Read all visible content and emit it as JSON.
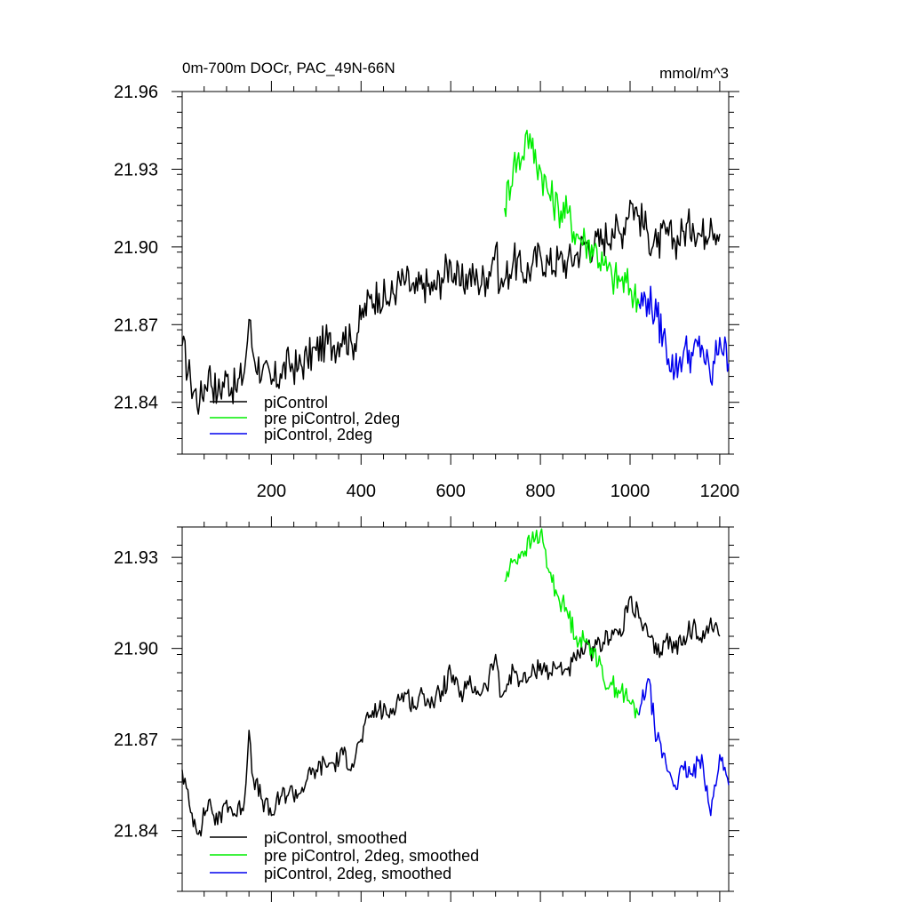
{
  "colors": {
    "black": "#000000",
    "green": "#00ee00",
    "blue": "#0000ee"
  },
  "chart_data": [
    {
      "type": "line",
      "title": "0m-700m DOCr, PAC_49N-66N",
      "units": "mmol/m^3",
      "xlim": [
        1,
        1220
      ],
      "ylim": [
        21.82,
        21.96
      ],
      "xticks": [
        200,
        400,
        600,
        800,
        1000,
        1200
      ],
      "xtick_labels": [
        "200",
        "400",
        "600",
        "800",
        "1000",
        "1200"
      ],
      "yticks": [
        21.84,
        21.87,
        21.9,
        21.93,
        21.96
      ],
      "ytick_labels": [
        "21.84",
        "21.87",
        "21.90",
        "21.93",
        "21.96"
      ],
      "legend_position": "bottom-left",
      "series": [
        {
          "name": "piControl",
          "color": "#000000",
          "x": [
            1,
            20,
            40,
            60,
            80,
            100,
            120,
            140,
            150,
            160,
            180,
            200,
            220,
            240,
            260,
            280,
            300,
            320,
            340,
            360,
            380,
            400,
            420,
            440,
            460,
            480,
            500,
            520,
            540,
            560,
            580,
            600,
            620,
            640,
            660,
            680,
            700,
            710,
            720,
            740,
            760,
            780,
            800,
            820,
            840,
            860,
            880,
            900,
            920,
            940,
            960,
            980,
            1000,
            1020,
            1040,
            1060,
            1080,
            1100,
            1120,
            1140,
            1160,
            1180,
            1200
          ],
          "values": [
            21.862,
            21.848,
            21.84,
            21.852,
            21.843,
            21.85,
            21.845,
            21.852,
            21.872,
            21.858,
            21.852,
            21.847,
            21.851,
            21.855,
            21.853,
            21.857,
            21.86,
            21.863,
            21.862,
            21.867,
            21.862,
            21.872,
            21.88,
            21.882,
            21.879,
            21.885,
            21.887,
            21.882,
            21.886,
            21.883,
            21.888,
            21.894,
            21.885,
            21.889,
            21.887,
            21.888,
            21.9,
            21.884,
            21.887,
            21.895,
            21.89,
            21.892,
            21.897,
            21.893,
            21.895,
            21.894,
            21.897,
            21.902,
            21.9,
            21.903,
            21.907,
            21.905,
            21.918,
            21.912,
            21.905,
            21.9,
            21.905,
            21.902,
            21.906,
            21.909,
            21.904,
            21.911,
            21.905
          ]
        },
        {
          "name": "pre piControl, 2deg",
          "color": "#00ee00",
          "x": [
            720,
            740,
            760,
            770,
            780,
            800,
            820,
            840,
            860,
            880,
            900,
            920,
            940,
            960,
            980,
            1000,
            1020
          ],
          "values": [
            21.915,
            21.932,
            21.935,
            21.945,
            21.938,
            21.93,
            21.92,
            21.915,
            21.913,
            21.905,
            21.902,
            21.9,
            21.893,
            21.888,
            21.887,
            21.884,
            21.878
          ]
        },
        {
          "name": "piControl, 2deg",
          "color": "#0000ee",
          "x": [
            1020,
            1040,
            1060,
            1080,
            1100,
            1120,
            1140,
            1160,
            1180,
            1200,
            1220
          ],
          "values": [
            21.878,
            21.88,
            21.873,
            21.862,
            21.852,
            21.86,
            21.858,
            21.862,
            21.848,
            21.865,
            21.855
          ]
        }
      ]
    },
    {
      "type": "line",
      "title": "",
      "xlim": [
        1,
        1220
      ],
      "ylim": [
        21.82,
        21.94
      ],
      "xticks": [
        200,
        400,
        600,
        800,
        1000,
        1200
      ],
      "yticks": [
        21.84,
        21.87,
        21.9,
        21.93
      ],
      "ytick_labels": [
        "21.84",
        "21.87",
        "21.90",
        "21.93"
      ],
      "legend_position": "bottom-left",
      "series": [
        {
          "name": "piControl, smoothed",
          "color": "#000000",
          "x": [
            1,
            20,
            40,
            60,
            80,
            100,
            120,
            140,
            150,
            160,
            180,
            200,
            220,
            240,
            260,
            280,
            300,
            320,
            340,
            360,
            380,
            400,
            420,
            440,
            460,
            480,
            500,
            520,
            540,
            560,
            580,
            600,
            620,
            640,
            660,
            680,
            700,
            710,
            720,
            740,
            760,
            780,
            800,
            820,
            840,
            860,
            880,
            900,
            920,
            940,
            960,
            980,
            1000,
            1020,
            1040,
            1060,
            1080,
            1100,
            1120,
            1140,
            1160,
            1180,
            1200
          ],
          "values": [
            21.86,
            21.846,
            21.84,
            21.85,
            21.842,
            21.85,
            21.845,
            21.85,
            21.873,
            21.857,
            21.85,
            21.845,
            21.851,
            21.853,
            21.852,
            21.857,
            21.86,
            21.862,
            21.862,
            21.865,
            21.862,
            21.87,
            21.878,
            21.88,
            21.878,
            21.883,
            21.885,
            21.881,
            21.885,
            21.882,
            21.886,
            21.892,
            21.884,
            21.888,
            21.886,
            21.887,
            21.898,
            21.884,
            21.886,
            21.893,
            21.889,
            21.891,
            21.895,
            21.892,
            21.894,
            21.893,
            21.896,
            21.9,
            21.899,
            21.902,
            21.906,
            21.904,
            21.917,
            21.91,
            21.904,
            21.898,
            21.903,
            21.9,
            21.904,
            21.907,
            21.902,
            21.91,
            21.904
          ]
        },
        {
          "name": "pre piControl, 2deg, smoothed",
          "color": "#00ee00",
          "x": [
            720,
            740,
            760,
            780,
            800,
            820,
            840,
            860,
            880,
            900,
            920,
            940,
            960,
            980,
            1000,
            1020
          ],
          "values": [
            21.922,
            21.929,
            21.932,
            21.935,
            21.938,
            21.925,
            21.917,
            21.912,
            21.904,
            21.902,
            21.9,
            21.89,
            21.888,
            21.886,
            21.882,
            21.878
          ]
        },
        {
          "name": "piControl, 2deg, smoothed",
          "color": "#0000ee",
          "x": [
            1020,
            1040,
            1060,
            1080,
            1100,
            1120,
            1140,
            1160,
            1180,
            1200,
            1220
          ],
          "values": [
            21.878,
            21.89,
            21.87,
            21.862,
            21.855,
            21.86,
            21.858,
            21.865,
            21.845,
            21.865,
            21.855
          ]
        }
      ]
    }
  ]
}
